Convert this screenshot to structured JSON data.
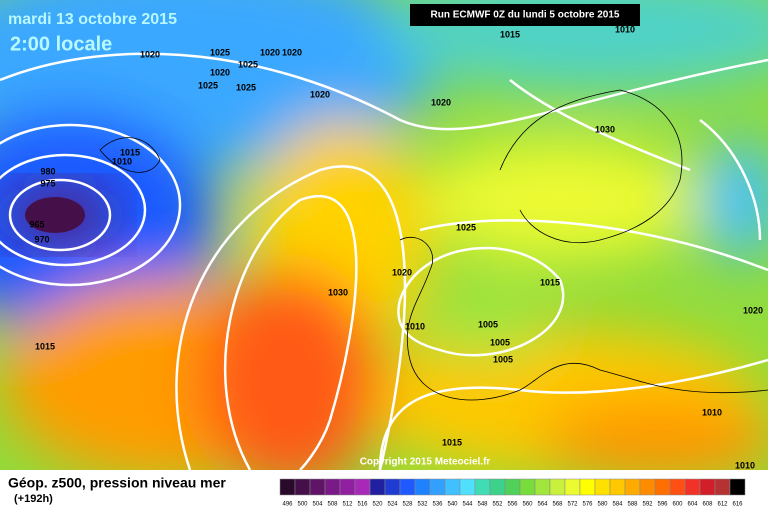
{
  "header": {
    "date": "mardi 13 octobre 2015",
    "time": "2:00 locale",
    "run": "Run ECMWF 0Z du lundi 5 octobre 2015",
    "copyright": "Copyright 2015 Meteociel.fr"
  },
  "legend": {
    "title": "Géop. z500, pression niveau mer",
    "lead": "(+192h)",
    "labels": [
      496,
      500,
      504,
      508,
      512,
      516,
      520,
      524,
      528,
      532,
      536,
      540,
      544,
      548,
      552,
      556,
      560,
      564,
      568,
      572,
      576,
      580,
      584,
      588,
      592,
      596,
      600,
      604,
      608,
      612,
      616
    ],
    "colors": [
      "#2a0a2a",
      "#45104a",
      "#601468",
      "#7a1a88",
      "#9020a0",
      "#a828b8",
      "#2020a0",
      "#1e3cd2",
      "#1e5aff",
      "#1e82ff",
      "#32a0ff",
      "#40c0ff",
      "#50e0ff",
      "#40dcb4",
      "#3cd28c",
      "#50d25a",
      "#78dc3c",
      "#a0e63c",
      "#c8f03c",
      "#ecfa32",
      "#ffff00",
      "#ffe100",
      "#ffc800",
      "#ffaa00",
      "#ff8c00",
      "#ff6e00",
      "#ff5014",
      "#f03228",
      "#d21e28",
      "#b43232",
      "#000000"
    ]
  },
  "isobar_labels": [
    1020,
    1025,
    1020,
    1025,
    1025,
    1025,
    1020,
    1020,
    1020,
    1020,
    1015,
    1010,
    1030,
    980,
    975,
    965,
    970,
    1015,
    1010,
    1015,
    1030,
    1025,
    1020,
    1015,
    1010,
    1005,
    1005,
    1005,
    1020,
    1010,
    1015,
    1010
  ]
}
